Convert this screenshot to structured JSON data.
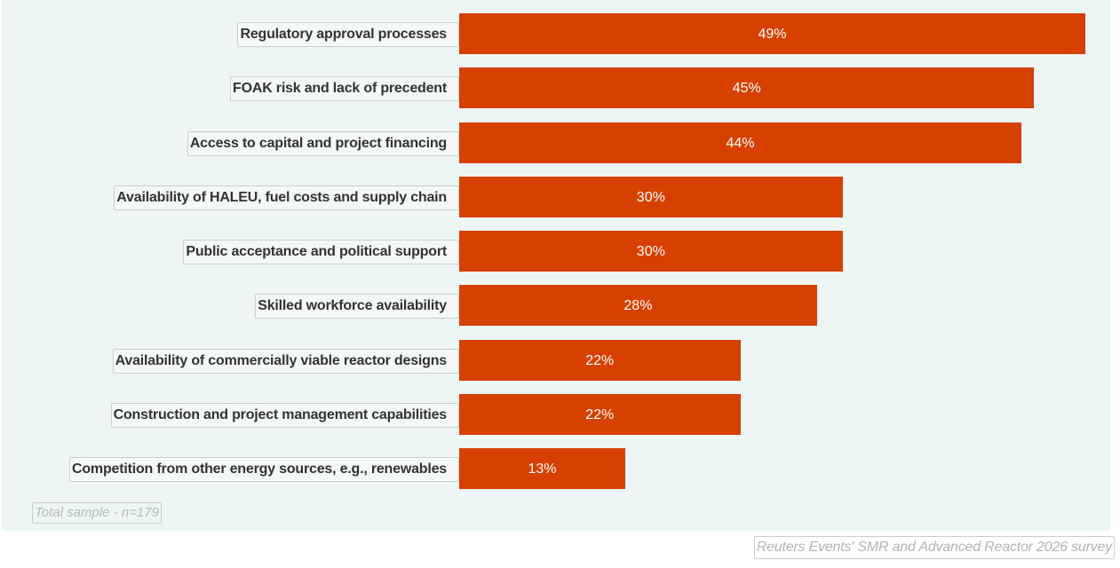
{
  "chart_data": {
    "type": "bar",
    "orientation": "horizontal",
    "categories": [
      "Regulatory approval processes",
      "FOAK risk and lack of precedent",
      "Access to capital and project financing",
      "Availability of HALEU, fuel costs and supply chain",
      "Public acceptance and political support",
      "Skilled workforce availability",
      "Availability of commercially viable reactor designs",
      "Construction and project management capabilities",
      "Competition from other energy sources, e.g., renewables"
    ],
    "values": [
      49,
      45,
      44,
      30,
      30,
      28,
      22,
      22,
      13
    ],
    "value_labels": [
      "49%",
      "45%",
      "44%",
      "30%",
      "30%",
      "28%",
      "22%",
      "22%",
      "13%"
    ],
    "unit": "%",
    "bar_color": "#d64000",
    "background_color": "#edf6f4",
    "grid": false
  },
  "note": "Total sample - n=179",
  "source": "Reuters Events' SMR and Advanced Reactor 2026 survey"
}
